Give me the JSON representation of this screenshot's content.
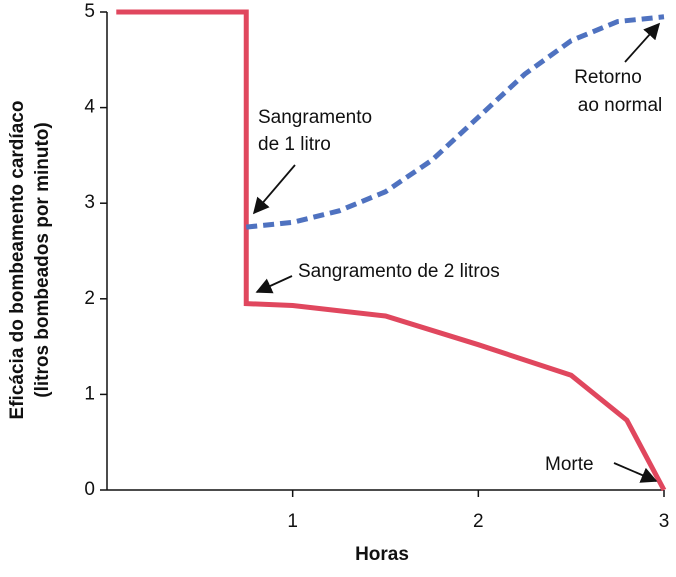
{
  "chart_data": {
    "type": "line",
    "x_label": "Horas",
    "y_label": [
      "Eficácia do bombeamento cardíaco",
      "(litros bombeados por minuto)"
    ],
    "xlim": [
      0,
      3
    ],
    "xticks": [
      1,
      2,
      3
    ],
    "ylim": [
      0,
      5
    ],
    "yticks": [
      0,
      1,
      2,
      3,
      4,
      5
    ],
    "series": [
      {
        "color": "#e0475e",
        "dashed": false,
        "x": [
          0.05,
          0.75,
          0.75,
          1.0,
          1.5,
          2.0,
          2.5,
          2.8,
          3.0
        ],
        "values": [
          5,
          5,
          1.95,
          1.93,
          1.82,
          1.52,
          1.2,
          0.73,
          0
        ]
      },
      {
        "color": "#4f72c0",
        "dashed": true,
        "x": [
          0.75,
          1.0,
          1.25,
          1.5,
          1.75,
          2.0,
          2.25,
          2.5,
          2.75,
          3.0
        ],
        "values": [
          2.75,
          2.8,
          2.92,
          3.12,
          3.45,
          3.9,
          4.35,
          4.7,
          4.9,
          4.95
        ]
      }
    ],
    "annotations": [
      {
        "lines": [
          "Sangramento",
          "de 1 litro"
        ]
      },
      {
        "lines": [
          "Sangramento de 2 litros"
        ]
      },
      {
        "lines": [
          "Retorno",
          "ao normal"
        ]
      },
      {
        "lines": [
          "Morte"
        ]
      }
    ]
  }
}
